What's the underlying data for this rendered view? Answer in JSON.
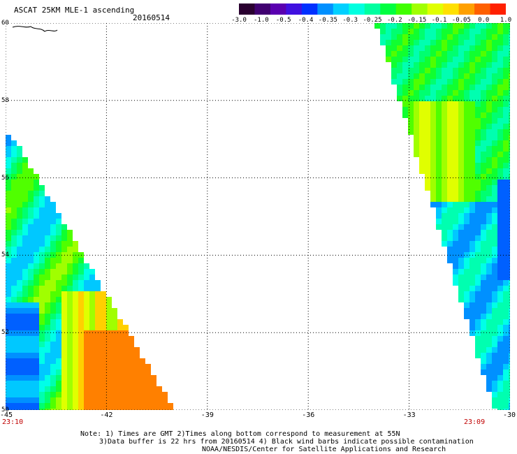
{
  "header": {
    "title": "ASCAT 25KM MLE-1 ascending",
    "date": "20160514"
  },
  "colorbar": {
    "tick_labels": [
      "-3.0",
      "-1.0",
      "-0.5",
      "-0.4",
      "-0.35",
      "-0.3",
      "-0.25",
      "-0.2",
      "-0.15",
      "-0.1",
      "-0.05",
      "0.0",
      "1.0"
    ],
    "colors": [
      "#2a0030",
      "#400070",
      "#5a00b0",
      "#4010e0",
      "#0030ff",
      "#0090ff",
      "#00d0ff",
      "#00ffe0",
      "#00ffa0",
      "#00ff40",
      "#40ff00",
      "#a0ff00",
      "#e0ff00",
      "#ffe000",
      "#ffa000",
      "#ff6000",
      "#ff2000"
    ]
  },
  "map": {
    "lon_labels": [
      "-45",
      "-42",
      "-39",
      "-36",
      "-33",
      "-30"
    ],
    "lat_labels": [
      "60",
      "58",
      "56",
      "54",
      "52",
      "50"
    ],
    "lon_range": [
      -45,
      -30
    ],
    "lat_range": [
      50,
      60
    ],
    "grid": true
  },
  "time_labels": {
    "left": "23:10",
    "right": "23:09"
  },
  "footer": {
    "line1": "Note: 1) Times are GMT 2)Times along bottom correspond to measurement at 55N",
    "line2": "3)Data buffer is 22 hrs from 20160514 4) Black wind barbs indicate possible contamination",
    "line3": "NOAA/NESDIS/Center for Satellite Applications and Research"
  }
}
